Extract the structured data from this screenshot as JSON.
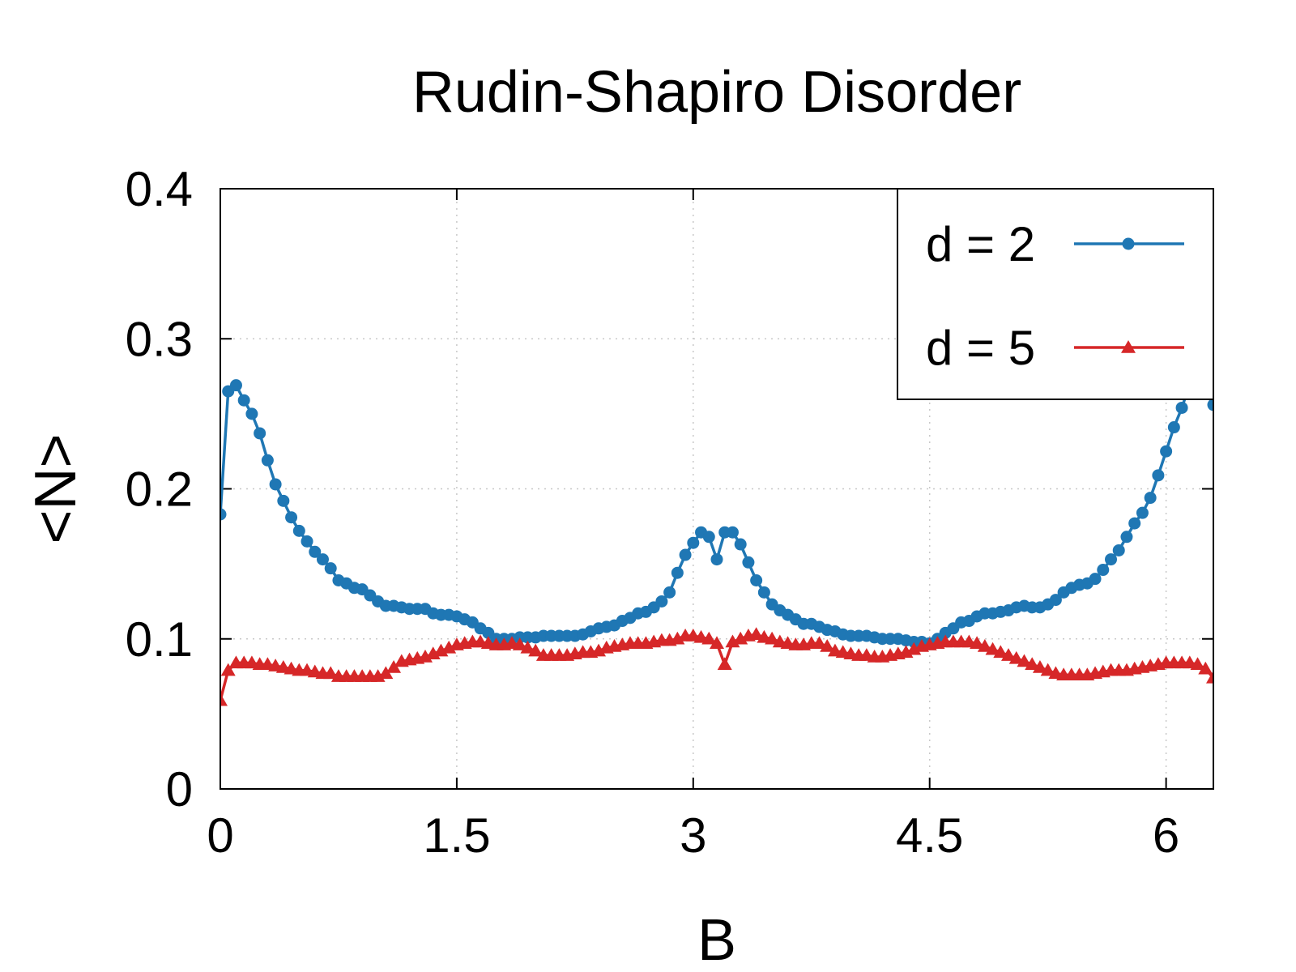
{
  "chart_data": {
    "type": "line",
    "title": "Rudin-Shapiro Disorder",
    "xlabel": "B",
    "ylabel": "<N>",
    "xlim": [
      0,
      6.3
    ],
    "ylim": [
      0,
      0.4
    ],
    "xticks": [
      "0",
      "1.5",
      "3",
      "4.5",
      "6"
    ],
    "xtick_values": [
      0,
      1.5,
      3,
      4.5,
      6
    ],
    "yticks": [
      "0",
      "0.1",
      "0.2",
      "0.3",
      "0.4"
    ],
    "ytick_values": [
      0,
      0.1,
      0.2,
      0.3,
      0.4
    ],
    "grid": true,
    "legend_position": "top-right",
    "series": [
      {
        "name": "d = 2",
        "color": "#1f77b4",
        "marker": "circle",
        "x": [
          0.0,
          0.05,
          0.1,
          0.15,
          0.2,
          0.25,
          0.3,
          0.35,
          0.4,
          0.45,
          0.5,
          0.55,
          0.6,
          0.65,
          0.7,
          0.75,
          0.8,
          0.85,
          0.9,
          0.95,
          1.0,
          1.05,
          1.1,
          1.15,
          1.2,
          1.25,
          1.3,
          1.35,
          1.4,
          1.45,
          1.5,
          1.55,
          1.6,
          1.65,
          1.7,
          1.75,
          1.8,
          1.85,
          1.9,
          1.95,
          2.0,
          2.05,
          2.1,
          2.15,
          2.2,
          2.25,
          2.3,
          2.35,
          2.4,
          2.45,
          2.5,
          2.55,
          2.6,
          2.65,
          2.7,
          2.75,
          2.8,
          2.85,
          2.9,
          2.95,
          3.0,
          3.05,
          3.1,
          3.15,
          3.2,
          3.25,
          3.3,
          3.35,
          3.4,
          3.45,
          3.5,
          3.55,
          3.6,
          3.65,
          3.7,
          3.75,
          3.8,
          3.85,
          3.9,
          3.95,
          4.0,
          4.05,
          4.1,
          4.15,
          4.2,
          4.25,
          4.3,
          4.35,
          4.4,
          4.45,
          4.5,
          4.55,
          4.6,
          4.65,
          4.7,
          4.75,
          4.8,
          4.85,
          4.9,
          4.95,
          5.0,
          5.05,
          5.1,
          5.15,
          5.2,
          5.25,
          5.3,
          5.35,
          5.4,
          5.45,
          5.5,
          5.55,
          5.6,
          5.65,
          5.7,
          5.75,
          5.8,
          5.85,
          5.9,
          5.95,
          6.0,
          6.05,
          6.1,
          6.15,
          6.2,
          6.25,
          6.3
        ],
        "y": [
          0.183,
          0.265,
          0.269,
          0.259,
          0.25,
          0.237,
          0.219,
          0.203,
          0.192,
          0.181,
          0.172,
          0.165,
          0.158,
          0.153,
          0.147,
          0.139,
          0.137,
          0.134,
          0.133,
          0.129,
          0.125,
          0.122,
          0.122,
          0.121,
          0.12,
          0.12,
          0.12,
          0.117,
          0.116,
          0.116,
          0.115,
          0.113,
          0.111,
          0.107,
          0.104,
          0.1,
          0.1,
          0.1,
          0.101,
          0.101,
          0.101,
          0.102,
          0.102,
          0.102,
          0.102,
          0.102,
          0.103,
          0.105,
          0.107,
          0.108,
          0.109,
          0.112,
          0.114,
          0.117,
          0.118,
          0.121,
          0.125,
          0.131,
          0.144,
          0.156,
          0.164,
          0.171,
          0.168,
          0.153,
          0.171,
          0.171,
          0.163,
          0.151,
          0.139,
          0.131,
          0.123,
          0.119,
          0.116,
          0.113,
          0.11,
          0.11,
          0.108,
          0.106,
          0.105,
          0.103,
          0.102,
          0.102,
          0.102,
          0.101,
          0.1,
          0.1,
          0.1,
          0.099,
          0.098,
          0.098,
          0.097,
          0.1,
          0.104,
          0.107,
          0.111,
          0.112,
          0.115,
          0.117,
          0.117,
          0.118,
          0.119,
          0.121,
          0.122,
          0.121,
          0.121,
          0.123,
          0.126,
          0.131,
          0.134,
          0.136,
          0.137,
          0.14,
          0.146,
          0.153,
          0.159,
          0.168,
          0.177,
          0.184,
          0.194,
          0.209,
          0.225,
          0.241,
          0.254,
          0.27,
          0.27,
          0.265,
          0.256
        ]
      },
      {
        "name": "d = 5",
        "color": "#d62728",
        "marker": "triangle",
        "x": [
          0.0,
          0.05,
          0.1,
          0.15,
          0.2,
          0.25,
          0.3,
          0.35,
          0.4,
          0.45,
          0.5,
          0.55,
          0.6,
          0.65,
          0.7,
          0.75,
          0.8,
          0.85,
          0.9,
          0.95,
          1.0,
          1.05,
          1.1,
          1.15,
          1.2,
          1.25,
          1.3,
          1.35,
          1.4,
          1.45,
          1.5,
          1.55,
          1.6,
          1.65,
          1.7,
          1.75,
          1.8,
          1.85,
          1.9,
          1.95,
          2.0,
          2.05,
          2.1,
          2.15,
          2.2,
          2.25,
          2.3,
          2.35,
          2.4,
          2.45,
          2.5,
          2.55,
          2.6,
          2.65,
          2.7,
          2.75,
          2.8,
          2.85,
          2.9,
          2.95,
          3.0,
          3.05,
          3.1,
          3.15,
          3.2,
          3.25,
          3.3,
          3.35,
          3.4,
          3.45,
          3.5,
          3.55,
          3.6,
          3.65,
          3.7,
          3.75,
          3.8,
          3.85,
          3.9,
          3.95,
          4.0,
          4.05,
          4.1,
          4.15,
          4.2,
          4.25,
          4.3,
          4.35,
          4.4,
          4.45,
          4.5,
          4.55,
          4.6,
          4.65,
          4.7,
          4.75,
          4.8,
          4.85,
          4.9,
          4.95,
          5.0,
          5.05,
          5.1,
          5.15,
          5.2,
          5.25,
          5.3,
          5.35,
          5.4,
          5.45,
          5.5,
          5.55,
          5.6,
          5.65,
          5.7,
          5.75,
          5.8,
          5.85,
          5.9,
          5.95,
          6.0,
          6.05,
          6.1,
          6.15,
          6.2,
          6.25,
          6.3
        ],
        "y": [
          0.059,
          0.079,
          0.084,
          0.084,
          0.084,
          0.083,
          0.083,
          0.082,
          0.081,
          0.08,
          0.079,
          0.079,
          0.078,
          0.077,
          0.077,
          0.075,
          0.075,
          0.075,
          0.075,
          0.075,
          0.075,
          0.077,
          0.081,
          0.085,
          0.086,
          0.087,
          0.088,
          0.09,
          0.092,
          0.094,
          0.096,
          0.097,
          0.098,
          0.098,
          0.097,
          0.096,
          0.096,
          0.097,
          0.096,
          0.094,
          0.092,
          0.089,
          0.089,
          0.089,
          0.089,
          0.09,
          0.091,
          0.091,
          0.092,
          0.094,
          0.095,
          0.096,
          0.097,
          0.097,
          0.097,
          0.098,
          0.099,
          0.099,
          0.1,
          0.102,
          0.102,
          0.101,
          0.1,
          0.097,
          0.083,
          0.098,
          0.1,
          0.102,
          0.103,
          0.101,
          0.1,
          0.098,
          0.097,
          0.096,
          0.096,
          0.097,
          0.097,
          0.095,
          0.092,
          0.091,
          0.09,
          0.089,
          0.089,
          0.088,
          0.088,
          0.089,
          0.09,
          0.091,
          0.093,
          0.095,
          0.096,
          0.097,
          0.098,
          0.098,
          0.098,
          0.098,
          0.097,
          0.095,
          0.093,
          0.091,
          0.089,
          0.087,
          0.085,
          0.083,
          0.081,
          0.079,
          0.077,
          0.076,
          0.076,
          0.076,
          0.076,
          0.077,
          0.078,
          0.079,
          0.079,
          0.079,
          0.08,
          0.081,
          0.082,
          0.083,
          0.084,
          0.084,
          0.084,
          0.084,
          0.083,
          0.08,
          0.074
        ]
      }
    ]
  }
}
